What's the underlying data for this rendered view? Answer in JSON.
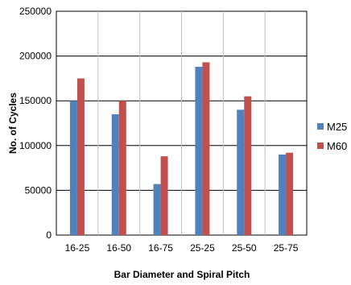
{
  "chart_data": {
    "type": "bar",
    "categories": [
      "16-25",
      "16-50",
      "16-75",
      "25-25",
      "25-50",
      "25-75"
    ],
    "series": [
      {
        "name": "M25",
        "values": [
          150000,
          135000,
          57000,
          188000,
          140000,
          90000
        ],
        "color": "#4f81bd"
      },
      {
        "name": "M60",
        "values": [
          175000,
          150000,
          88000,
          193000,
          155000,
          92000
        ],
        "color": "#c0504d"
      }
    ],
    "title": "",
    "xlabel": "Bar Diameter and Spiral Pitch",
    "ylabel": "No. of Cycles",
    "ylim": [
      0,
      250000
    ],
    "yticks": [
      "0",
      "50000",
      "100000",
      "150000",
      "200000",
      "250000"
    ],
    "grid": true,
    "legend_position": "right"
  }
}
